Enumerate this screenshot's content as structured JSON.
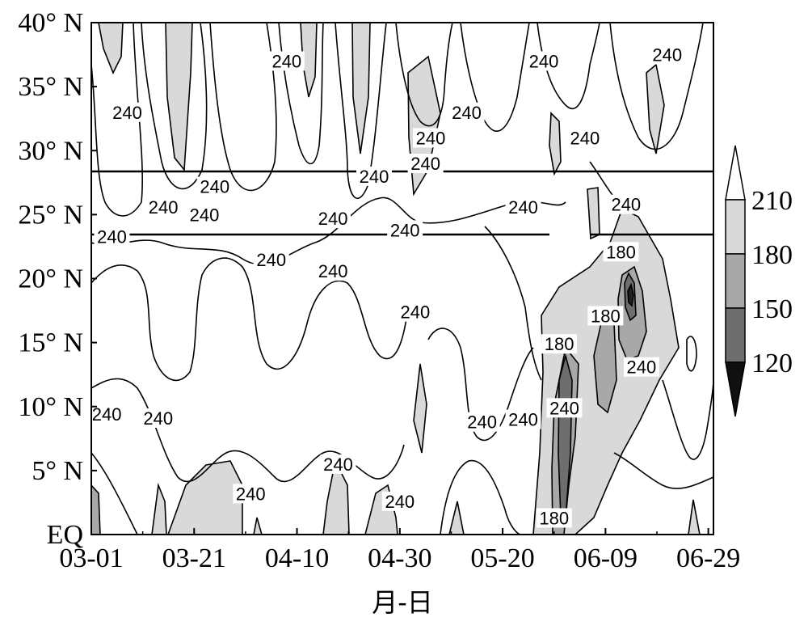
{
  "chart_data": {
    "type": "heatmap",
    "title": "",
    "xlabel": "月-日",
    "ylabel": "",
    "x_ticks": [
      "03-01",
      "03-21",
      "04-10",
      "04-30",
      "05-20",
      "06-09",
      "06-29"
    ],
    "y_ticks": [
      "EQ",
      "5° N",
      "10° N",
      "15° N",
      "20° N",
      "25° N",
      "30° N",
      "35° N",
      "40° N"
    ],
    "xlim": [
      "03-01",
      "06-30"
    ],
    "ylim_deg_n": [
      0,
      40
    ],
    "colorbar": {
      "levels": [
        "210",
        "180",
        "150",
        "120"
      ],
      "level_values": [
        210,
        180,
        150,
        120
      ],
      "colors": [
        "#ffffff",
        "#d9d9d9",
        "#a8a8a8",
        "#6e6e6e",
        "#101010"
      ],
      "extend": "both"
    },
    "contour_labels": [
      {
        "text": "240",
        "date": "04-08",
        "lat": 37.0
      },
      {
        "text": "240",
        "date": "05-28",
        "lat": 37.0
      },
      {
        "text": "240",
        "date": "06-21",
        "lat": 37.5
      },
      {
        "text": "240",
        "date": "03-08",
        "lat": 33.0
      },
      {
        "text": "240",
        "date": "05-13",
        "lat": 33.0
      },
      {
        "text": "240",
        "date": "05-06",
        "lat": 31.0
      },
      {
        "text": "240",
        "date": "06-05",
        "lat": 31.0
      },
      {
        "text": "240",
        "date": "05-05",
        "lat": 29.0
      },
      {
        "text": "240",
        "date": "04-25",
        "lat": 28.0
      },
      {
        "text": "240",
        "date": "03-25",
        "lat": 27.2
      },
      {
        "text": "240",
        "date": "03-15",
        "lat": 25.6
      },
      {
        "text": "240",
        "date": "03-23",
        "lat": 25.0
      },
      {
        "text": "240",
        "date": "05-24",
        "lat": 25.6
      },
      {
        "text": "240",
        "date": "06-13",
        "lat": 25.8
      },
      {
        "text": "240",
        "date": "03-05",
        "lat": 23.3
      },
      {
        "text": "240",
        "date": "04-17",
        "lat": 24.7
      },
      {
        "text": "240",
        "date": "05-01",
        "lat": 23.8
      },
      {
        "text": "240",
        "date": "04-05",
        "lat": 21.5
      },
      {
        "text": "240",
        "date": "04-17",
        "lat": 20.6
      },
      {
        "text": "180",
        "date": "06-12",
        "lat": 22.1
      },
      {
        "text": "240",
        "date": "05-03",
        "lat": 17.4
      },
      {
        "text": "180",
        "date": "06-09",
        "lat": 17.1
      },
      {
        "text": "180",
        "date": "05-31",
        "lat": 14.9
      },
      {
        "text": "240",
        "date": "06-16",
        "lat": 13.1
      },
      {
        "text": "240",
        "date": "03-04",
        "lat": 9.4
      },
      {
        "text": "240",
        "date": "03-14",
        "lat": 9.1
      },
      {
        "text": "240",
        "date": "06-01",
        "lat": 9.9
      },
      {
        "text": "240",
        "date": "05-16",
        "lat": 8.8
      },
      {
        "text": "240",
        "date": "05-24",
        "lat": 9.0
      },
      {
        "text": "240",
        "date": "04-18",
        "lat": 5.5
      },
      {
        "text": "240",
        "date": "04-01",
        "lat": 3.2
      },
      {
        "text": "240",
        "date": "04-30",
        "lat": 2.6
      },
      {
        "text": "180",
        "date": "05-30",
        "lat": 1.3
      }
    ],
    "reference_lines_lat": [
      28.5,
      23.5
    ]
  }
}
